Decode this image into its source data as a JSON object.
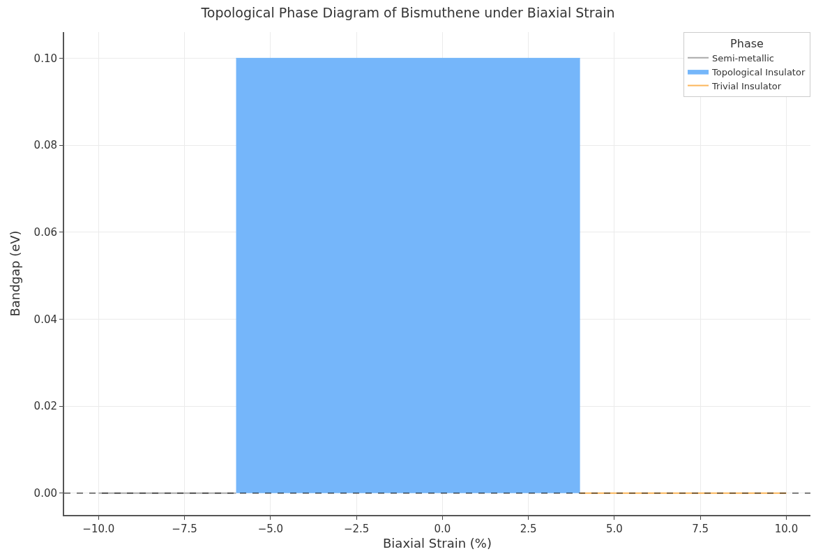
{
  "chart_data": {
    "type": "area",
    "title": "Topological Phase Diagram of Bismuthene under Biaxial Strain",
    "xlabel": "Biaxial Strain (%)",
    "ylabel": "Bandgap (eV)",
    "legend_title": "Phase",
    "series": [
      {
        "name": "Semi-metallic",
        "type": "line",
        "color": "#a9a9a9",
        "x": [
          -10,
          -6
        ],
        "values": [
          0,
          0
        ]
      },
      {
        "name": "Topological Insulator",
        "color": "#75b6fa",
        "x": [
          -6,
          4
        ],
        "values": [
          0.1,
          0.1
        ]
      },
      {
        "name": "Trivial Insulator",
        "type": "line",
        "color": "#fcb65a",
        "x": [
          4,
          10
        ],
        "values": [
          0,
          0
        ]
      }
    ],
    "xlim": [
      -11,
      10.7
    ],
    "ylim": [
      -0.005,
      0.106
    ],
    "xticks": [
      {
        "value": -10,
        "label": "−10.0"
      },
      {
        "value": -7.5,
        "label": "−7.5"
      },
      {
        "value": -5,
        "label": "−5.0"
      },
      {
        "value": -2.5,
        "label": "−2.5"
      },
      {
        "value": 0,
        "label": "0.0"
      },
      {
        "value": 2.5,
        "label": "2.5"
      },
      {
        "value": 5,
        "label": "5.0"
      },
      {
        "value": 7.5,
        "label": "7.5"
      },
      {
        "value": 10,
        "label": "10.0"
      }
    ],
    "yticks": [
      {
        "value": 0,
        "label": "0.00"
      },
      {
        "value": 0.02,
        "label": "0.02"
      },
      {
        "value": 0.04,
        "label": "0.04"
      },
      {
        "value": 0.06,
        "label": "0.06"
      },
      {
        "value": 0.08,
        "label": "0.08"
      },
      {
        "value": 0.1,
        "label": "0.10"
      }
    ],
    "ref_lines": [
      {
        "axis": "y",
        "value": 0,
        "color": "#000000",
        "line_style": "dashed"
      }
    ],
    "grid": true,
    "legend": "top right"
  }
}
